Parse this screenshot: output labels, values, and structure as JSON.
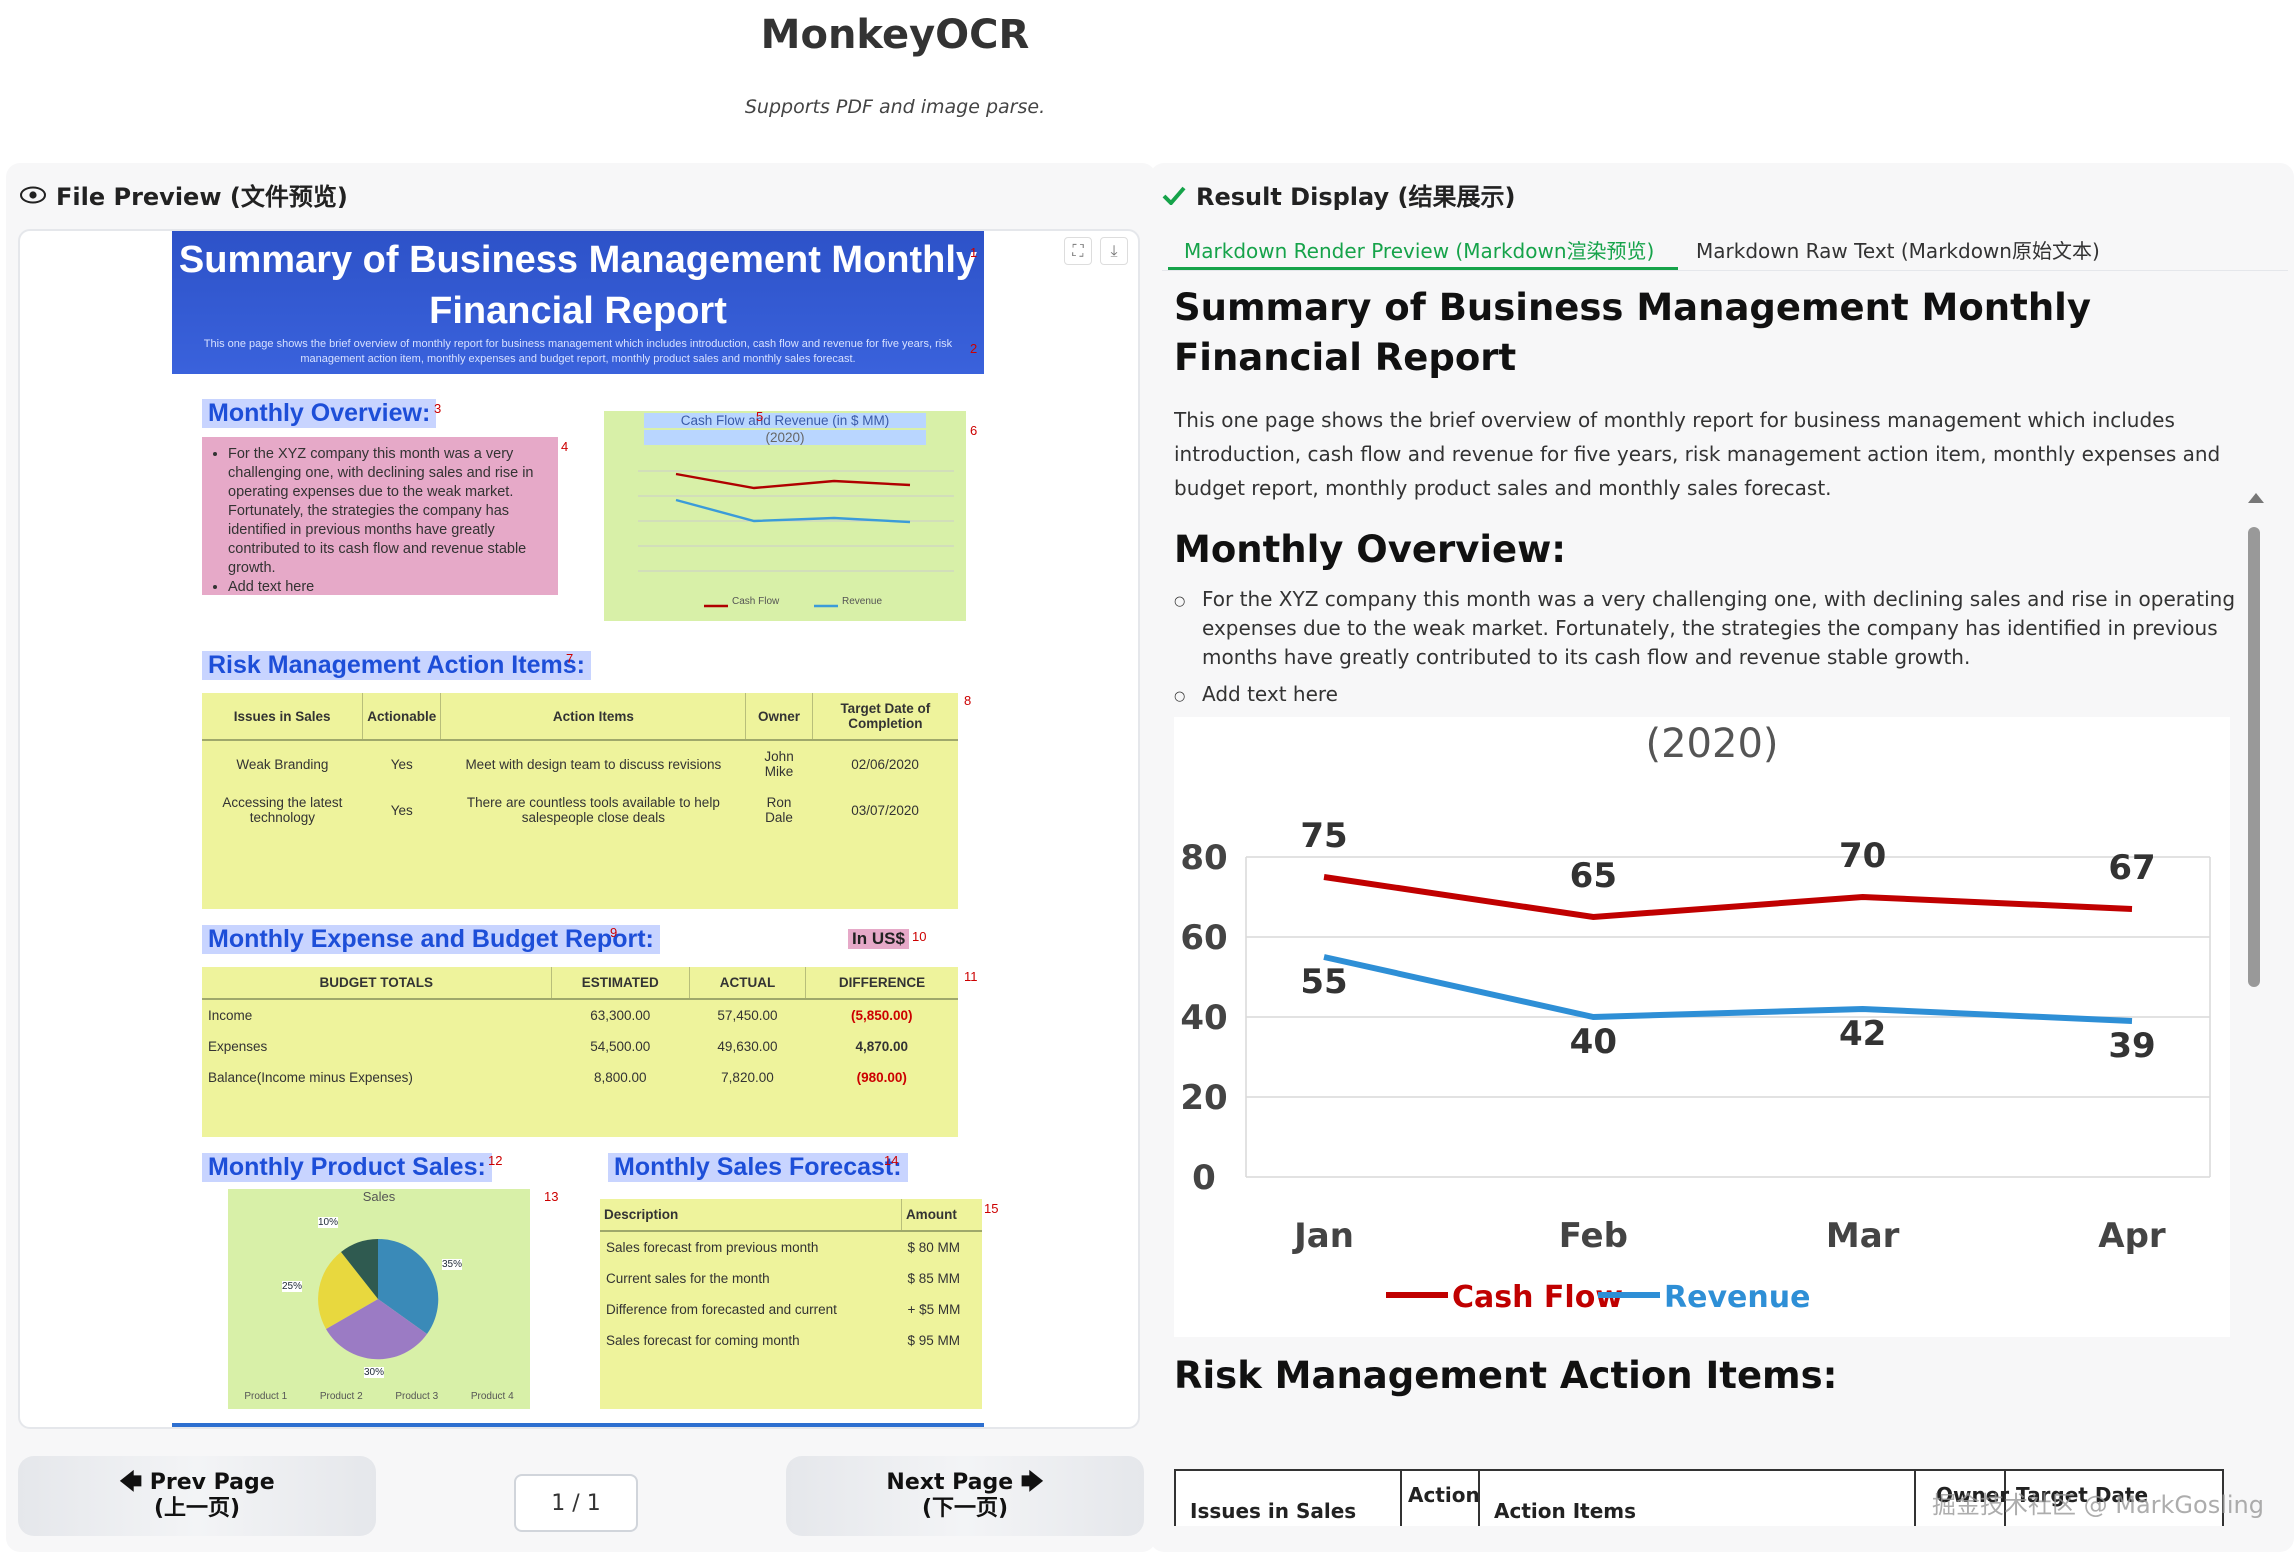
{
  "app": {
    "title": "MonkeyOCR",
    "subtitle": "Supports PDF and image parse."
  },
  "left": {
    "heading": "File Preview (文件预览)",
    "icon": "eye-icon",
    "doc": {
      "banner_title": "Summary of Business Management Monthly Financial Report",
      "banner_sub": "This one page shows the brief overview of monthly report for business management which includes introduction, cash flow and revenue for five years, risk management action item, monthly expenses and budget report, monthly product sales and monthly sales forecast.",
      "overview_h": "Monthly Overview:",
      "overview_text": "For the XYZ company this month was a very challenging one, with declining sales and rise in operating expenses due to the weak market. Fortunately, the strategies the company has identified in previous months have greatly contributed to its cash flow and revenue stable growth.",
      "overview_add": "Add text here",
      "mini_chart_title": "Cash Flow and Revenue (in $ MM)",
      "mini_chart_year": "(2020)",
      "risk_h": "Risk Management Action Items:",
      "risk_cols": [
        "Issues in Sales",
        "Actionable",
        "Action Items",
        "Owner",
        "Target Date of Completion"
      ],
      "risk_rows": [
        [
          "Weak Branding",
          "Yes",
          "Meet with design team to discuss revisions",
          "John Mike",
          "02/06/2020"
        ],
        [
          "Accessing the latest technology",
          "Yes",
          "There are countless tools available to help salespeople close deals",
          "Ron Dale",
          "03/07/2020"
        ]
      ],
      "expense_h": "Monthly Expense and Budget Report:",
      "currency": "In US$",
      "exp_cols": [
        "BUDGET TOTALS",
        "ESTIMATED",
        "ACTUAL",
        "DIFFERENCE"
      ],
      "exp_rows": [
        [
          "Income",
          "63,300.00",
          "57,450.00",
          "(5,850.00)"
        ],
        [
          "Expenses",
          "54,500.00",
          "49,630.00",
          "4,870.00"
        ],
        [
          "Balance(Income minus Expenses)",
          "8,800.00",
          "7,820.00",
          "(980.00)"
        ]
      ],
      "sales_h": "Monthly Product Sales:",
      "pie_title": "Sales",
      "pie_labels": [
        "10%",
        "35%",
        "25%",
        "30%"
      ],
      "pie_legend": [
        "Product 1",
        "Product 2",
        "Product 3",
        "Product 4"
      ],
      "forecast_h": "Monthly Sales Forecast:",
      "fc_cols": [
        "Description",
        "Amount"
      ],
      "fc_rows": [
        [
          "Sales forecast from previous month",
          "$ 80 MM"
        ],
        [
          "Current sales for the month",
          "$ 85 MM"
        ],
        [
          "Difference from forecasted and current",
          "+ $5 MM"
        ],
        [
          "Sales forecast for coming month",
          "$ 95 MM"
        ]
      ],
      "marks": [
        "1",
        "2",
        "3",
        "4",
        "5",
        "6",
        "7",
        "8",
        "9",
        "10",
        "11",
        "12",
        "13",
        "14",
        "15"
      ]
    },
    "prev": {
      "label": "Prev Page",
      "sub": "(上一页)"
    },
    "next": {
      "label": "Next Page",
      "sub": "(下一页)"
    },
    "page_indicator": "1 / 1"
  },
  "right": {
    "heading": "Result Display (结果展示)",
    "icon": "check-icon",
    "tabs": [
      "Markdown Render Preview (Markdown渲染预览)",
      "Markdown Raw Text (Markdown原始文本)"
    ],
    "active_tab": 0,
    "md": {
      "h1": "Summary of Business Management Monthly Financial Report",
      "p1": "This one page shows the brief overview of monthly report for business management which includes introduction, cash flow and revenue for five years, risk management action item, monthly expenses and budget report, monthly product sales and monthly sales forecast.",
      "h2_overview": "Monthly Overview:",
      "li1": "For the XYZ company this month was a very challenging one, with declining sales and rise in operating expenses due to the weak market. Fortunately, the strategies the company has identified in previous months have greatly contributed to its cash flow and revenue stable growth.",
      "li2": "Add text here",
      "h2_risk": "Risk Management Action Items:",
      "risk_cols": [
        "Issues in Sales",
        "Action",
        "Action Items",
        "Owner",
        "Target Date"
      ]
    },
    "watermark": "掘金技术社区 @ MarkGosling"
  },
  "chart_data": {
    "type": "line",
    "title": "(2020)",
    "categories": [
      "Jan",
      "Feb",
      "Mar",
      "Apr"
    ],
    "series": [
      {
        "name": "Cash Flow",
        "values": [
          75,
          65,
          70,
          67
        ],
        "color": "#c00000"
      },
      {
        "name": "Revenue",
        "values": [
          55,
          40,
          42,
          39
        ],
        "color": "#2e8fd6"
      }
    ],
    "ylim": [
      0,
      80
    ],
    "yticks": [
      "0",
      "20",
      "40",
      "60",
      "80"
    ],
    "grid": true,
    "legend": "bottom"
  }
}
